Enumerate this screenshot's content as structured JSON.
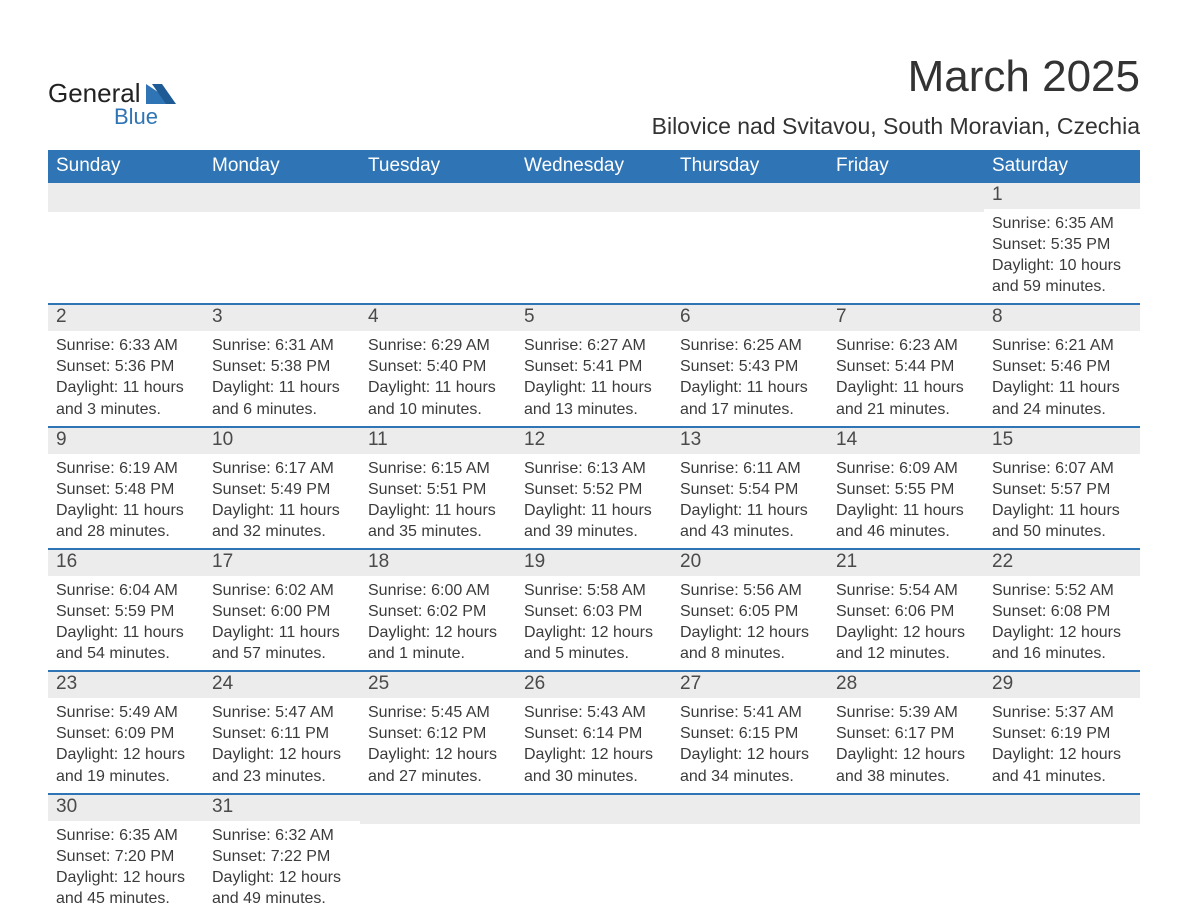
{
  "brand": {
    "name_top": "General",
    "name_bottom": "Blue",
    "text_color": "#222222",
    "accent_color": "#2f74b5"
  },
  "header": {
    "month_title": "March 2025",
    "location": "Bilovice nad Svitavou, South Moravian, Czechia",
    "title_fontsize": 44,
    "location_fontsize": 23
  },
  "theme": {
    "header_row_bg": "#2f74b5",
    "header_row_text": "#ffffff",
    "daynum_bg": "#ececec",
    "body_text": "#3b3b3b",
    "separator_color": "#2f74b5",
    "page_bg": "#ffffff",
    "font_family": "Arial"
  },
  "calendar": {
    "type": "table",
    "columns": [
      "Sunday",
      "Monday",
      "Tuesday",
      "Wednesday",
      "Thursday",
      "Friday",
      "Saturday"
    ],
    "weeks": [
      [
        null,
        null,
        null,
        null,
        null,
        null,
        {
          "n": "1",
          "sunrise": "Sunrise: 6:35 AM",
          "sunset": "Sunset: 5:35 PM",
          "day1": "Daylight: 10 hours",
          "day2": "and 59 minutes."
        }
      ],
      [
        {
          "n": "2",
          "sunrise": "Sunrise: 6:33 AM",
          "sunset": "Sunset: 5:36 PM",
          "day1": "Daylight: 11 hours",
          "day2": "and 3 minutes."
        },
        {
          "n": "3",
          "sunrise": "Sunrise: 6:31 AM",
          "sunset": "Sunset: 5:38 PM",
          "day1": "Daylight: 11 hours",
          "day2": "and 6 minutes."
        },
        {
          "n": "4",
          "sunrise": "Sunrise: 6:29 AM",
          "sunset": "Sunset: 5:40 PM",
          "day1": "Daylight: 11 hours",
          "day2": "and 10 minutes."
        },
        {
          "n": "5",
          "sunrise": "Sunrise: 6:27 AM",
          "sunset": "Sunset: 5:41 PM",
          "day1": "Daylight: 11 hours",
          "day2": "and 13 minutes."
        },
        {
          "n": "6",
          "sunrise": "Sunrise: 6:25 AM",
          "sunset": "Sunset: 5:43 PM",
          "day1": "Daylight: 11 hours",
          "day2": "and 17 minutes."
        },
        {
          "n": "7",
          "sunrise": "Sunrise: 6:23 AM",
          "sunset": "Sunset: 5:44 PM",
          "day1": "Daylight: 11 hours",
          "day2": "and 21 minutes."
        },
        {
          "n": "8",
          "sunrise": "Sunrise: 6:21 AM",
          "sunset": "Sunset: 5:46 PM",
          "day1": "Daylight: 11 hours",
          "day2": "and 24 minutes."
        }
      ],
      [
        {
          "n": "9",
          "sunrise": "Sunrise: 6:19 AM",
          "sunset": "Sunset: 5:48 PM",
          "day1": "Daylight: 11 hours",
          "day2": "and 28 minutes."
        },
        {
          "n": "10",
          "sunrise": "Sunrise: 6:17 AM",
          "sunset": "Sunset: 5:49 PM",
          "day1": "Daylight: 11 hours",
          "day2": "and 32 minutes."
        },
        {
          "n": "11",
          "sunrise": "Sunrise: 6:15 AM",
          "sunset": "Sunset: 5:51 PM",
          "day1": "Daylight: 11 hours",
          "day2": "and 35 minutes."
        },
        {
          "n": "12",
          "sunrise": "Sunrise: 6:13 AM",
          "sunset": "Sunset: 5:52 PM",
          "day1": "Daylight: 11 hours",
          "day2": "and 39 minutes."
        },
        {
          "n": "13",
          "sunrise": "Sunrise: 6:11 AM",
          "sunset": "Sunset: 5:54 PM",
          "day1": "Daylight: 11 hours",
          "day2": "and 43 minutes."
        },
        {
          "n": "14",
          "sunrise": "Sunrise: 6:09 AM",
          "sunset": "Sunset: 5:55 PM",
          "day1": "Daylight: 11 hours",
          "day2": "and 46 minutes."
        },
        {
          "n": "15",
          "sunrise": "Sunrise: 6:07 AM",
          "sunset": "Sunset: 5:57 PM",
          "day1": "Daylight: 11 hours",
          "day2": "and 50 minutes."
        }
      ],
      [
        {
          "n": "16",
          "sunrise": "Sunrise: 6:04 AM",
          "sunset": "Sunset: 5:59 PM",
          "day1": "Daylight: 11 hours",
          "day2": "and 54 minutes."
        },
        {
          "n": "17",
          "sunrise": "Sunrise: 6:02 AM",
          "sunset": "Sunset: 6:00 PM",
          "day1": "Daylight: 11 hours",
          "day2": "and 57 minutes."
        },
        {
          "n": "18",
          "sunrise": "Sunrise: 6:00 AM",
          "sunset": "Sunset: 6:02 PM",
          "day1": "Daylight: 12 hours",
          "day2": "and 1 minute."
        },
        {
          "n": "19",
          "sunrise": "Sunrise: 5:58 AM",
          "sunset": "Sunset: 6:03 PM",
          "day1": "Daylight: 12 hours",
          "day2": "and 5 minutes."
        },
        {
          "n": "20",
          "sunrise": "Sunrise: 5:56 AM",
          "sunset": "Sunset: 6:05 PM",
          "day1": "Daylight: 12 hours",
          "day2": "and 8 minutes."
        },
        {
          "n": "21",
          "sunrise": "Sunrise: 5:54 AM",
          "sunset": "Sunset: 6:06 PM",
          "day1": "Daylight: 12 hours",
          "day2": "and 12 minutes."
        },
        {
          "n": "22",
          "sunrise": "Sunrise: 5:52 AM",
          "sunset": "Sunset: 6:08 PM",
          "day1": "Daylight: 12 hours",
          "day2": "and 16 minutes."
        }
      ],
      [
        {
          "n": "23",
          "sunrise": "Sunrise: 5:49 AM",
          "sunset": "Sunset: 6:09 PM",
          "day1": "Daylight: 12 hours",
          "day2": "and 19 minutes."
        },
        {
          "n": "24",
          "sunrise": "Sunrise: 5:47 AM",
          "sunset": "Sunset: 6:11 PM",
          "day1": "Daylight: 12 hours",
          "day2": "and 23 minutes."
        },
        {
          "n": "25",
          "sunrise": "Sunrise: 5:45 AM",
          "sunset": "Sunset: 6:12 PM",
          "day1": "Daylight: 12 hours",
          "day2": "and 27 minutes."
        },
        {
          "n": "26",
          "sunrise": "Sunrise: 5:43 AM",
          "sunset": "Sunset: 6:14 PM",
          "day1": "Daylight: 12 hours",
          "day2": "and 30 minutes."
        },
        {
          "n": "27",
          "sunrise": "Sunrise: 5:41 AM",
          "sunset": "Sunset: 6:15 PM",
          "day1": "Daylight: 12 hours",
          "day2": "and 34 minutes."
        },
        {
          "n": "28",
          "sunrise": "Sunrise: 5:39 AM",
          "sunset": "Sunset: 6:17 PM",
          "day1": "Daylight: 12 hours",
          "day2": "and 38 minutes."
        },
        {
          "n": "29",
          "sunrise": "Sunrise: 5:37 AM",
          "sunset": "Sunset: 6:19 PM",
          "day1": "Daylight: 12 hours",
          "day2": "and 41 minutes."
        }
      ],
      [
        {
          "n": "30",
          "sunrise": "Sunrise: 6:35 AM",
          "sunset": "Sunset: 7:20 PM",
          "day1": "Daylight: 12 hours",
          "day2": "and 45 minutes."
        },
        {
          "n": "31",
          "sunrise": "Sunrise: 6:32 AM",
          "sunset": "Sunset: 7:22 PM",
          "day1": "Daylight: 12 hours",
          "day2": "and 49 minutes."
        },
        null,
        null,
        null,
        null,
        null
      ]
    ]
  }
}
